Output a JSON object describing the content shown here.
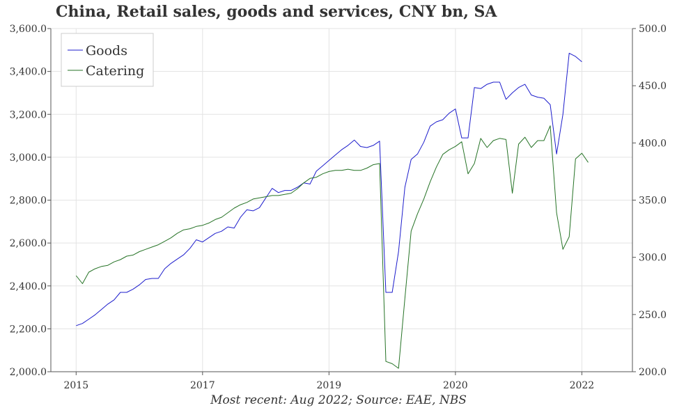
{
  "chart_data": {
    "type": "line",
    "title": "China, Retail sales, goods and services, CNY bn, SA",
    "source": "Most recent: Aug 2022; Source: EAE, NBS",
    "x_ticks": [
      {
        "x": 2015,
        "label": "2015"
      },
      {
        "x": 2017,
        "label": "2017"
      },
      {
        "x": 2019,
        "label": "2019"
      },
      {
        "x": 2021,
        "label": "2020"
      },
      {
        "x": 2023,
        "label": "2022"
      }
    ],
    "xlim": [
      2014.6,
      2023.8
    ],
    "left_axis": {
      "ylim": [
        2000,
        3600
      ],
      "ticks": [
        {
          "v": 2000,
          "label": "2,000.0"
        },
        {
          "v": 2200,
          "label": "2,200.0"
        },
        {
          "v": 2400,
          "label": "2,400.0"
        },
        {
          "v": 2600,
          "label": "2,600.0"
        },
        {
          "v": 2800,
          "label": "2,800.0"
        },
        {
          "v": 3000,
          "label": "3,000.0"
        },
        {
          "v": 3200,
          "label": "3,200.0"
        },
        {
          "v": 3400,
          "label": "3,400.0"
        },
        {
          "v": 3600,
          "label": "3,600.0"
        }
      ]
    },
    "right_axis": {
      "ylim": [
        200,
        500
      ],
      "ticks": [
        {
          "v": 200,
          "label": "200.0"
        },
        {
          "v": 250,
          "label": "250.0"
        },
        {
          "v": 300,
          "label": "300.0"
        },
        {
          "v": 350,
          "label": "350.0"
        },
        {
          "v": 400,
          "label": "400.0"
        },
        {
          "v": 450,
          "label": "450.0"
        },
        {
          "v": 500,
          "label": "500.0"
        }
      ]
    },
    "grid": true,
    "legend": "top-left",
    "series": [
      {
        "name": "Goods",
        "axis": "left",
        "color": "#1c1ccc",
        "x_start": 2015.0,
        "x_step": 0.1,
        "values": [
          2215,
          2225,
          2245,
          2265,
          2290,
          2315,
          2335,
          2370,
          2370,
          2385,
          2405,
          2430,
          2435,
          2435,
          2480,
          2505,
          2525,
          2545,
          2575,
          2615,
          2605,
          2625,
          2645,
          2655,
          2675,
          2670,
          2720,
          2755,
          2750,
          2765,
          2810,
          2855,
          2835,
          2845,
          2845,
          2860,
          2880,
          2875,
          2935,
          2960,
          2985,
          3010,
          3035,
          3055,
          3080,
          3050,
          3045,
          3055,
          3075,
          2370,
          2370,
          2560,
          2860,
          2990,
          3015,
          3070,
          3145,
          3165,
          3175,
          3205,
          3225,
          3090,
          3090,
          3325,
          3320,
          3340,
          3350,
          3350,
          3270,
          3300,
          3325,
          3340,
          3290,
          3280,
          3275,
          3245,
          3015,
          3200,
          3485,
          3470,
          3445
        ]
      },
      {
        "name": "Catering",
        "axis": "right",
        "color": "#267326",
        "x_start": 2015.0,
        "x_step": 0.1,
        "values": [
          284,
          277,
          287,
          290,
          292,
          293,
          296,
          298,
          301,
          302,
          305,
          307,
          309,
          311,
          314,
          317,
          321,
          324,
          325,
          327,
          328,
          330,
          333,
          335,
          339,
          343,
          346,
          348,
          351,
          352,
          353,
          354,
          354,
          355,
          356,
          360,
          365,
          369,
          370,
          373,
          375,
          376,
          376,
          377,
          376,
          376,
          378,
          381,
          382,
          209,
          207,
          203,
          264,
          323,
          338,
          351,
          366,
          379,
          390,
          394,
          397,
          401,
          373,
          382,
          404,
          396,
          402,
          404,
          403,
          356,
          399,
          405,
          396,
          402,
          402,
          415,
          339,
          307,
          318,
          386,
          391,
          383
        ]
      }
    ]
  }
}
